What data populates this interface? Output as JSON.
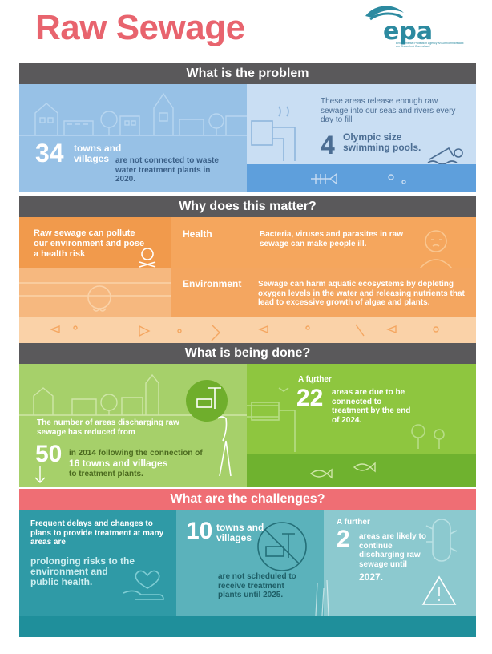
{
  "header": {
    "title": "Raw Sewage",
    "logo_name": "epa",
    "logo_subtitle": "Environmental Protection Agency An Ghníomhaireacht um Chaomhnú Comhshaoil"
  },
  "problem": {
    "heading": "What is the problem",
    "towns_number": "34",
    "towns_label": "towns and villages",
    "towns_text": "are not connected to waste water treatment plants in 2020.",
    "release_text": "These areas release enough raw sewage into our seas and rivers every day to fill",
    "pools_number": "4",
    "pools_label": "Olympic size swimming pools."
  },
  "matter": {
    "heading": "Why does this matter?",
    "intro": "Raw sewage can pollute our environment and pose a health risk",
    "health_title": "Health",
    "health_text": "Bacteria, viruses and parasites in raw sewage can make people ill.",
    "env_title": "Environment",
    "env_text": "Sewage can harm aquatic ecosystems by depleting oxygen levels in the water and releasing nutrients that lead to excessive growth of algae and plants."
  },
  "done": {
    "heading": "What is being done?",
    "reduced_text": "The number of areas discharging raw sewage has reduced from",
    "reduced_number": "50",
    "reduced_text2": "in 2014 following the connection of",
    "connected_label": "16 towns and villages",
    "connected_text": "to treatment plants.",
    "further_label": "A further",
    "further_number": "22",
    "further_text": "areas are due to be connected to treatment by the end of 2024."
  },
  "challenges": {
    "heading": "What are the challenges?",
    "delays_text": "Frequent delays and changes to plans to provide treatment at many areas are",
    "risk_text": "prolonging risks to the environment and public health.",
    "ten_number": "10",
    "ten_label": "towns and villages",
    "ten_text": "are not scheduled to receive treatment plants until 2025.",
    "further_label": "A further",
    "two_number": "2",
    "two_text": "areas are likely to continue discharging raw sewage until",
    "two_year": "2027."
  },
  "colors": {
    "title": "#e8646e",
    "band": "#5a595b",
    "band_pink": "#ef6e74",
    "blue": "#97c1e6",
    "orange": "#f19a4c",
    "green": "#8ec63f",
    "teal": "#2f9aa6",
    "logo": "#2c8aa0"
  }
}
